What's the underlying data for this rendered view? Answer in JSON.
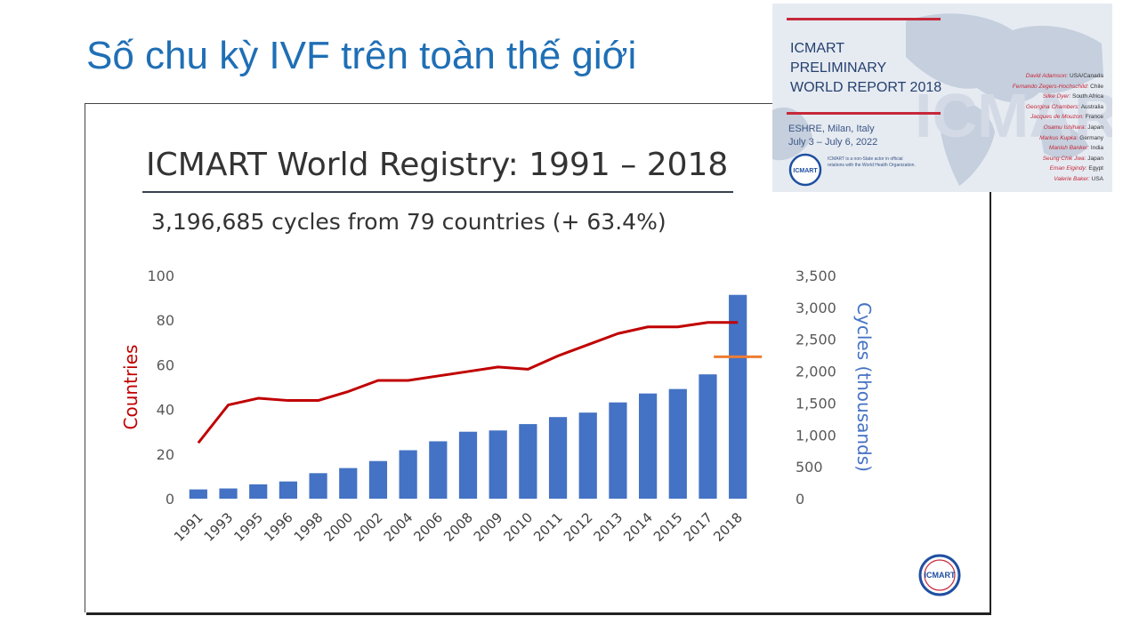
{
  "slide": {
    "title": "Số chu kỳ IVF trên toàn thế giới"
  },
  "registry": {
    "title": "ICMART World Registry: 1991 – 2018",
    "subtitle": "3,196,685 cycles from 79 countries (+ 63.4%)"
  },
  "chart_data": {
    "type": "bar",
    "categories": [
      "1991",
      "1993",
      "1995",
      "1996",
      "1998",
      "2000",
      "2002",
      "2004",
      "2006",
      "2008",
      "2009",
      "2010",
      "2011",
      "2012",
      "2013",
      "2014",
      "2015",
      "2017",
      "2018"
    ],
    "series": [
      {
        "kind": "bar",
        "axis": "right",
        "color": "#4472c4",
        "values": [
          145,
          160,
          225,
          270,
          400,
          480,
          590,
          760,
          900,
          1050,
          1070,
          1170,
          1280,
          1350,
          1510,
          1650,
          1720,
          1950,
          3197
        ]
      },
      {
        "kind": "line",
        "axis": "left",
        "color": "#c00000",
        "values": [
          25,
          42,
          45,
          44,
          44,
          48,
          53,
          53,
          55,
          57,
          59,
          58,
          64,
          69,
          74,
          77,
          77,
          79,
          79
        ]
      }
    ],
    "ylabel_left": "Countries",
    "ylabel_right": "Cycles (thousands)",
    "ylim_left": [
      0,
      100
    ],
    "ylim_right": [
      0,
      3500
    ],
    "yticks_left": [
      "0",
      "20",
      "40",
      "60",
      "80",
      "100"
    ],
    "yticks_right": [
      "0",
      "500",
      "1,000",
      "1,500",
      "2,000",
      "2,500",
      "3,000",
      "3,500"
    ],
    "reference_mark": {
      "value": 2225,
      "axis": "right",
      "color": "#ed7d31"
    },
    "grid": false,
    "legend": "none"
  },
  "report": {
    "line1": "ICMART",
    "line2": "PRELIMINARY",
    "line3": "WORLD REPORT 2018",
    "venue": "ESHRE, Milan, Italy",
    "dates": "July 3 – July 6, 2022",
    "logo_text": "ICMART",
    "note": "ICMART is a non-State actor in official relations with the World Health Organization.",
    "authors": [
      {
        "name": "David Adamson:",
        "country": "USA/Canada"
      },
      {
        "name": "Fernando Zegers-Hochschild:",
        "country": "Chile"
      },
      {
        "name": "Silke Dyer:",
        "country": "South Africa"
      },
      {
        "name": "Georgina Chambers:",
        "country": "Australia"
      },
      {
        "name": "Jacques de Mouzon:",
        "country": "France"
      },
      {
        "name": "Osamu Ishihara:",
        "country": "Japan"
      },
      {
        "name": "Markus Kupka:",
        "country": "Germany"
      },
      {
        "name": "Manish Banker:",
        "country": "India"
      },
      {
        "name": "Seung Chik Jwa:",
        "country": "Japan"
      },
      {
        "name": "Eman Elgindy:",
        "country": "Egypt"
      },
      {
        "name": "Valerie Baker:",
        "country": "USA"
      }
    ]
  },
  "badge": {
    "text": "ICMART"
  }
}
